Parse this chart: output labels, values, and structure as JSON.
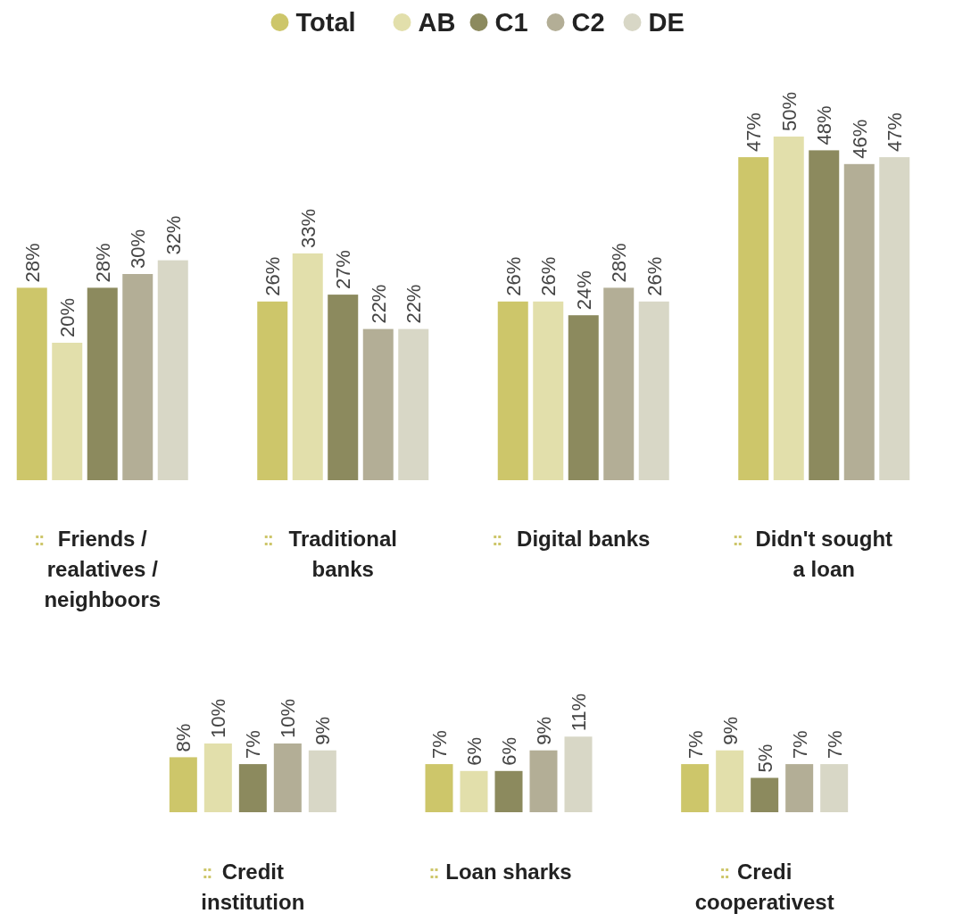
{
  "chart_data": [
    {
      "type": "bar",
      "categories": [
        "Friends / realatives / neighboors",
        "Traditional banks",
        "Digital banks",
        "Didn't sought a loan"
      ],
      "series": [
        {
          "name": "Total",
          "color": "#cdc66a",
          "values": [
            28,
            26,
            26,
            47
          ],
          "value_labels": [
            "28%",
            "26%",
            "26%",
            "47%"
          ]
        },
        {
          "name": "AB",
          "color": "#e2dfab",
          "values": [
            20,
            33,
            26,
            50
          ],
          "value_labels": [
            "20%",
            "33%",
            "26%",
            "50%"
          ]
        },
        {
          "name": "C1",
          "color": "#8c8a5e",
          "values": [
            28,
            27,
            24,
            48
          ],
          "value_labels": [
            "28%",
            "27%",
            "24%",
            "48%"
          ]
        },
        {
          "name": "C2",
          "color": "#b3ae96",
          "values": [
            30,
            22,
            28,
            46
          ],
          "value_labels": [
            "30%",
            "22%",
            "28%",
            "46%"
          ]
        },
        {
          "name": "DE",
          "color": "#d8d7c6",
          "values": [
            32,
            22,
            26,
            47
          ],
          "value_labels": [
            "32%",
            "22%",
            "26%",
            "47%"
          ]
        }
      ],
      "legend": "top"
    },
    {
      "type": "bar",
      "categories": [
        "Credit institution",
        "Loan sharks",
        "Credi cooperativest"
      ],
      "series": [
        {
          "color": "#cdc66a",
          "values": [
            8,
            7,
            7
          ],
          "value_labels": [
            "8%",
            "7%",
            "7%"
          ]
        },
        {
          "color": "#e2dfab",
          "values": [
            10,
            6,
            9
          ],
          "value_labels": [
            "10%",
            "6%",
            "9%"
          ]
        },
        {
          "color": "#8c8a5e",
          "values": [
            7,
            6,
            5
          ],
          "value_labels": [
            "7%",
            "6%",
            "5%"
          ]
        },
        {
          "color": "#b3ae96",
          "values": [
            10,
            9,
            7
          ],
          "value_labels": [
            "10%",
            "9%",
            "7%"
          ]
        },
        {
          "color": "#d8d7c6",
          "values": [
            9,
            11,
            7
          ],
          "value_labels": [
            "9%",
            "11%",
            "7%"
          ]
        }
      ]
    }
  ]
}
